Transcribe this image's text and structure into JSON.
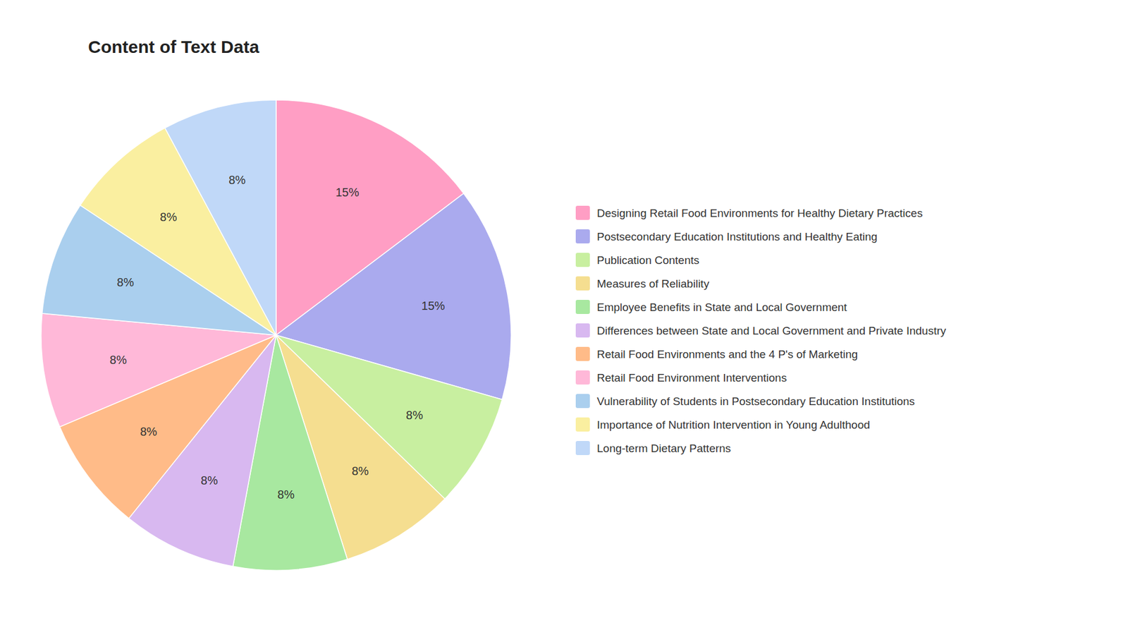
{
  "chart_data": {
    "type": "pie",
    "title": "Content of Text Data",
    "categories": [
      "Designing Retail Food Environments for Healthy Dietary Practices",
      "Postsecondary Education Institutions and Healthy Eating",
      "Publication Contents",
      "Measures of Reliability",
      "Employee Benefits in State and Local Government",
      "Differences between State and Local Government and Private Industry",
      "Retail Food Environments and the 4 P's of Marketing",
      "Retail Food Environment Interventions",
      "Vulnerability of Students in Postsecondary Education Institutions",
      "Importance of Nutrition Intervention in Young Adulthood",
      "Long-term Dietary Patterns"
    ],
    "values": [
      15,
      15,
      8,
      8,
      8,
      8,
      8,
      8,
      8,
      8,
      8
    ],
    "value_labels": [
      "15%",
      "15%",
      "8%",
      "8%",
      "8%",
      "8%",
      "8%",
      "8%",
      "8%",
      "8%",
      "8%"
    ],
    "colors": [
      "#FF9EC4",
      "#AAAAEE",
      "#C8EFA0",
      "#F5DE90",
      "#A8E8A0",
      "#D8B8F0",
      "#FFBB88",
      "#FFB8D8",
      "#AACFEE",
      "#FAEFA0",
      "#C0D8F8"
    ],
    "data_labels": true,
    "legend": "right"
  }
}
